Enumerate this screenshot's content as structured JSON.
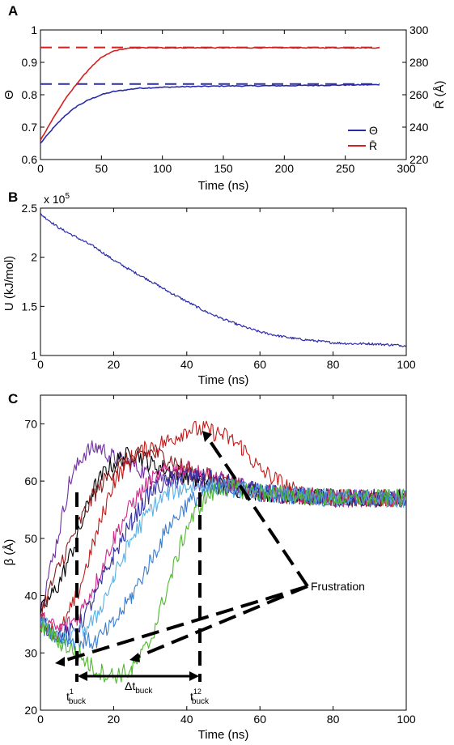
{
  "chart_data": [
    {
      "panel": "A",
      "type": "line",
      "xlabel": "Time (ns)",
      "ylabel": "Θ",
      "y2label": "R̄ (Å)",
      "xlim": [
        0,
        300
      ],
      "ylim": [
        0.6,
        1.0
      ],
      "y2lim": [
        220,
        300
      ],
      "xticks": [
        "0",
        "50",
        "100",
        "150",
        "200",
        "250",
        "300"
      ],
      "yticks": [
        "0.6",
        "0.7",
        "0.8",
        "0.9",
        "1"
      ],
      "y2ticks": [
        "220",
        "240",
        "260",
        "280",
        "300"
      ],
      "legend_position": "bottom-right",
      "series": [
        {
          "name": "Θ",
          "axis": "left",
          "color": "#2b2ba8",
          "x": [
            0,
            10,
            20,
            30,
            40,
            50,
            60,
            70,
            80,
            100,
            120,
            150,
            200,
            250,
            278
          ],
          "values": [
            0.65,
            0.695,
            0.735,
            0.765,
            0.785,
            0.8,
            0.81,
            0.815,
            0.82,
            0.823,
            0.825,
            0.827,
            0.828,
            0.83,
            0.831
          ]
        },
        {
          "name": "R̄",
          "axis": "right",
          "color": "#d42020",
          "x": [
            0,
            10,
            20,
            30,
            40,
            50,
            60,
            70,
            80,
            100,
            150,
            200,
            250,
            278
          ],
          "values": [
            232,
            245,
            257,
            267,
            276,
            283,
            287,
            288.5,
            289,
            289,
            289,
            289,
            289,
            289
          ]
        }
      ],
      "reference_lines": [
        {
          "axis": "left",
          "y": 0.833,
          "color": "#2b2ba8",
          "style": "dashed"
        },
        {
          "axis": "right",
          "y": 289.2,
          "color": "#d42020",
          "style": "dashed"
        }
      ]
    },
    {
      "panel": "B",
      "type": "line",
      "xlabel": "Time (ns)",
      "ylabel": "U (kJ/mol)",
      "y_multiplier": "x 10",
      "y_multiplier_exp": "5",
      "xlim": [
        0,
        100
      ],
      "ylim": [
        1.0,
        2.5
      ],
      "xticks": [
        "0",
        "20",
        "40",
        "60",
        "80",
        "100"
      ],
      "yticks": [
        "1",
        "1.5",
        "2",
        "2.5"
      ],
      "series": [
        {
          "color": "#2b2ba8",
          "x": [
            0,
            5,
            10,
            15,
            20,
            25,
            30,
            35,
            40,
            45,
            50,
            55,
            60,
            65,
            70,
            75,
            80,
            85,
            90,
            95,
            100
          ],
          "values": [
            2.44,
            2.3,
            2.2,
            2.1,
            1.97,
            1.86,
            1.76,
            1.65,
            1.55,
            1.45,
            1.37,
            1.3,
            1.24,
            1.2,
            1.17,
            1.15,
            1.13,
            1.12,
            1.12,
            1.11,
            1.1
          ]
        }
      ]
    },
    {
      "panel": "C",
      "type": "line",
      "xlabel": "Time (ns)",
      "ylabel": "β (Å)",
      "xlim": [
        0,
        100
      ],
      "ylim": [
        20,
        75
      ],
      "xticks": [
        "0",
        "20",
        "40",
        "60",
        "80",
        "100"
      ],
      "yticks": [
        "20",
        "30",
        "40",
        "50",
        "60",
        "70"
      ],
      "series": [
        {
          "color": "#7030a0",
          "x": [
            0,
            4,
            8,
            12,
            16,
            20,
            25,
            30,
            40,
            50,
            60,
            80,
            100
          ],
          "values": [
            38,
            48,
            60,
            65,
            66,
            64,
            63,
            61,
            60,
            59,
            58,
            57,
            57
          ]
        },
        {
          "color": "#000000",
          "x": [
            0,
            5,
            10,
            14,
            18,
            22,
            26,
            30,
            40,
            50,
            60,
            80,
            100
          ],
          "values": [
            37,
            42,
            50,
            58,
            62,
            64,
            65,
            63,
            61,
            59,
            58,
            57,
            57
          ]
        },
        {
          "color": "#8b1a1a",
          "x": [
            0,
            5,
            10,
            15,
            20,
            25,
            30,
            35,
            40,
            50,
            60,
            80,
            100
          ],
          "values": [
            37,
            45,
            52,
            58,
            62,
            64,
            65,
            64,
            62,
            60,
            58,
            57,
            57
          ]
        },
        {
          "color": "#c01c1c",
          "x": [
            0,
            5,
            10,
            15,
            20,
            25,
            30,
            35,
            40,
            45,
            50,
            55,
            60,
            70,
            80,
            100
          ],
          "values": [
            36,
            33,
            40,
            50,
            60,
            64,
            66,
            67,
            69,
            69,
            68,
            66,
            62,
            58,
            57,
            57
          ]
        },
        {
          "color": "#cc2b8a",
          "x": [
            0,
            5,
            10,
            15,
            20,
            25,
            30,
            35,
            40,
            50,
            60,
            80,
            100
          ],
          "values": [
            36,
            34,
            36,
            42,
            50,
            56,
            60,
            62,
            62,
            60,
            58,
            57,
            57
          ]
        },
        {
          "color": "#2e2ea0",
          "x": [
            0,
            5,
            10,
            15,
            20,
            25,
            30,
            35,
            40,
            50,
            60,
            80,
            100
          ],
          "values": [
            35,
            33,
            34,
            40,
            47,
            53,
            58,
            60,
            61,
            60,
            58,
            57,
            57
          ]
        },
        {
          "color": "#5ab0e6",
          "x": [
            0,
            5,
            10,
            15,
            20,
            25,
            30,
            35,
            40,
            50,
            60,
            80,
            100
          ],
          "values": [
            36,
            32,
            33,
            36,
            43,
            50,
            55,
            58,
            59,
            59,
            58,
            57,
            57
          ]
        },
        {
          "color": "#3a7ed0",
          "x": [
            0,
            5,
            10,
            15,
            20,
            25,
            30,
            35,
            40,
            45,
            50,
            60,
            80,
            100
          ],
          "values": [
            35,
            33,
            32,
            32,
            35,
            40,
            46,
            52,
            56,
            58,
            59,
            58,
            57,
            57
          ]
        },
        {
          "color": "#4fb82e",
          "x": [
            0,
            5,
            10,
            15,
            20,
            25,
            30,
            35,
            40,
            45,
            50,
            60,
            80,
            100
          ],
          "values": [
            35,
            32,
            30,
            27,
            26,
            27,
            32,
            42,
            52,
            57,
            59,
            58,
            57,
            57
          ]
        }
      ],
      "annotations": [
        {
          "text": "Frustration"
        },
        {
          "text": "Δt",
          "sub": "buck"
        },
        {
          "text": "t",
          "sub": "buck",
          "sup": "1"
        },
        {
          "text": "t",
          "sub": "buck",
          "sup": "12"
        }
      ]
    }
  ],
  "panel_labels": [
    "A",
    "B",
    "C"
  ]
}
